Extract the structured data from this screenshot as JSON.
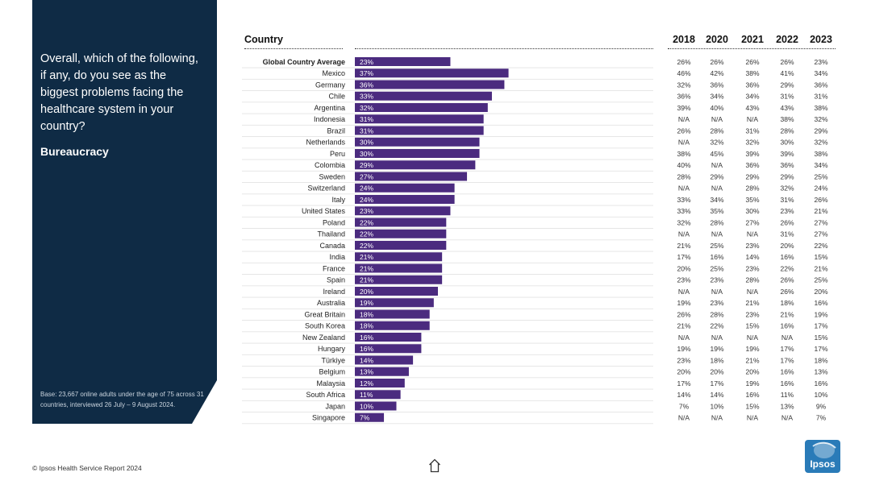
{
  "panel": {
    "question": "Overall, which of the following, if any, do you see as the biggest problems facing the healthcare system in your country?",
    "topic": "Bureaucracy",
    "base_note": "Base: 23,667 online adults under the age of 75 across 31 countries, interviewed 26 July – 9 August 2024."
  },
  "footer": {
    "source": "© Ipsos Health Service Report 2024",
    "logo_text": "Ipsos"
  },
  "colors": {
    "panel_bg": "#0f2b45",
    "bar": "#4b2b7f",
    "logo": "#2a7bb8"
  },
  "chart_data": {
    "type": "bar",
    "orientation": "horizontal",
    "title": "Bureaucracy",
    "category_header": "Country",
    "years": [
      "2018",
      "2020",
      "2021",
      "2022",
      "2023"
    ],
    "categories": [
      "Global Country Average",
      "Mexico",
      "Germany",
      "Chile",
      "Argentina",
      "Indonesia",
      "Brazil",
      "Netherlands",
      "Peru",
      "Colombia",
      "Sweden",
      "Switzerland",
      "Italy",
      "United States",
      "Poland",
      "Thailand",
      "Canada",
      "India",
      "France",
      "Spain",
      "Ireland",
      "Australia",
      "Great Britain",
      "South Korea",
      "New Zealand",
      "Hungary",
      "Türkiye",
      "Belgium",
      "Malaysia",
      "South Africa",
      "Japan",
      "Singapore"
    ],
    "values": [
      23,
      37,
      36,
      33,
      32,
      31,
      31,
      30,
      30,
      29,
      27,
      24,
      24,
      23,
      22,
      22,
      22,
      21,
      21,
      21,
      20,
      19,
      18,
      18,
      16,
      16,
      14,
      13,
      12,
      11,
      10,
      7
    ],
    "value_labels": [
      "23%",
      "37%",
      "36%",
      "33%",
      "32%",
      "31%",
      "31%",
      "30%",
      "30%",
      "29%",
      "27%",
      "24%",
      "24%",
      "23%",
      "22%",
      "22%",
      "22%",
      "21%",
      "21%",
      "21%",
      "20%",
      "19%",
      "18%",
      "18%",
      "16%",
      "16%",
      "14%",
      "13%",
      "12%",
      "11%",
      "10%",
      "7%"
    ],
    "xlim": [
      0,
      100
    ],
    "history": [
      [
        "26%",
        "26%",
        "26%",
        "26%",
        "23%"
      ],
      [
        "46%",
        "42%",
        "38%",
        "41%",
        "34%"
      ],
      [
        "32%",
        "36%",
        "36%",
        "29%",
        "36%"
      ],
      [
        "36%",
        "34%",
        "34%",
        "31%",
        "31%"
      ],
      [
        "39%",
        "40%",
        "43%",
        "43%",
        "38%"
      ],
      [
        "N/A",
        "N/A",
        "N/A",
        "38%",
        "32%"
      ],
      [
        "26%",
        "28%",
        "31%",
        "28%",
        "29%"
      ],
      [
        "N/A",
        "32%",
        "32%",
        "30%",
        "32%"
      ],
      [
        "38%",
        "45%",
        "39%",
        "39%",
        "38%"
      ],
      [
        "40%",
        "N/A",
        "36%",
        "36%",
        "34%"
      ],
      [
        "28%",
        "29%",
        "29%",
        "29%",
        "25%"
      ],
      [
        "N/A",
        "N/A",
        "28%",
        "32%",
        "24%"
      ],
      [
        "33%",
        "34%",
        "35%",
        "31%",
        "26%"
      ],
      [
        "33%",
        "35%",
        "30%",
        "23%",
        "21%"
      ],
      [
        "32%",
        "28%",
        "27%",
        "26%",
        "27%"
      ],
      [
        "N/A",
        "N/A",
        "N/A",
        "31%",
        "27%"
      ],
      [
        "21%",
        "25%",
        "23%",
        "20%",
        "22%"
      ],
      [
        "17%",
        "16%",
        "14%",
        "16%",
        "15%"
      ],
      [
        "20%",
        "25%",
        "23%",
        "22%",
        "21%"
      ],
      [
        "23%",
        "23%",
        "28%",
        "26%",
        "25%"
      ],
      [
        "N/A",
        "N/A",
        "N/A",
        "26%",
        "20%"
      ],
      [
        "19%",
        "23%",
        "21%",
        "18%",
        "16%"
      ],
      [
        "26%",
        "28%",
        "23%",
        "21%",
        "19%"
      ],
      [
        "21%",
        "22%",
        "15%",
        "16%",
        "17%"
      ],
      [
        "N/A",
        "N/A",
        "N/A",
        "N/A",
        "15%"
      ],
      [
        "19%",
        "19%",
        "19%",
        "17%",
        "17%"
      ],
      [
        "23%",
        "18%",
        "21%",
        "17%",
        "18%"
      ],
      [
        "20%",
        "20%",
        "20%",
        "16%",
        "13%"
      ],
      [
        "17%",
        "17%",
        "19%",
        "16%",
        "16%"
      ],
      [
        "14%",
        "14%",
        "16%",
        "11%",
        "10%"
      ],
      [
        "7%",
        "10%",
        "15%",
        "13%",
        "9%"
      ],
      [
        "N/A",
        "N/A",
        "N/A",
        "N/A",
        "7%"
      ]
    ]
  }
}
